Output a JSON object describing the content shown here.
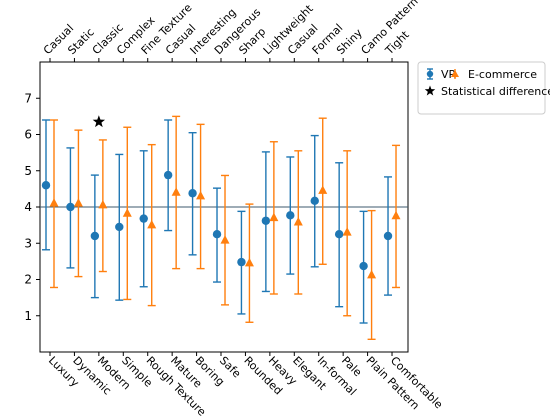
{
  "chart_data": {
    "type": "errorbar",
    "ylim": [
      0,
      8
    ],
    "y_ticks": [
      1,
      2,
      3,
      4,
      5,
      6,
      7
    ],
    "reference_line": 4,
    "categories_bottom": [
      "Luxury",
      "Dynamic",
      "Modern",
      "Simple",
      "Rough Texture",
      "Mature",
      "Boring",
      "Safe",
      "Rounded",
      "Heavy",
      "Elegant",
      "In-formal",
      "Pale",
      "Plain Pattern",
      "Comfortable"
    ],
    "categories_top": [
      "Casual",
      "Static",
      "Classic",
      "Complex",
      "Fine Texture",
      "Casual",
      "Interesting",
      "Dangerous",
      "Sharp",
      "Lightweight",
      "Casual",
      "Formal",
      "Shiny",
      "Camo Pattern",
      "Tight"
    ],
    "series": [
      {
        "name": "VR",
        "color": "#1f77b4",
        "marker": "circle",
        "mean": [
          4.6,
          4.0,
          3.2,
          3.45,
          3.68,
          4.88,
          4.38,
          3.25,
          2.48,
          3.62,
          3.77,
          4.17,
          3.25,
          2.37,
          3.2
        ],
        "low": [
          2.82,
          2.32,
          1.5,
          1.43,
          1.8,
          3.35,
          2.68,
          1.93,
          1.05,
          1.67,
          2.15,
          2.35,
          1.25,
          0.8,
          1.57
        ],
        "high": [
          6.4,
          5.63,
          4.88,
          5.45,
          5.55,
          6.4,
          6.05,
          4.52,
          3.88,
          5.52,
          5.38,
          5.97,
          5.22,
          3.88,
          4.83
        ]
      },
      {
        "name": "E-commerce",
        "color": "#ff7f0e",
        "marker": "triangle",
        "mean": [
          4.1,
          4.1,
          4.05,
          3.82,
          3.5,
          4.4,
          4.3,
          3.08,
          2.45,
          3.7,
          3.58,
          4.45,
          3.3,
          2.12,
          3.75
        ],
        "low": [
          1.78,
          2.08,
          2.22,
          1.45,
          1.28,
          2.3,
          2.3,
          1.3,
          0.82,
          1.6,
          1.6,
          2.42,
          1.0,
          0.35,
          1.78
        ],
        "high": [
          6.4,
          6.12,
          5.85,
          6.2,
          5.72,
          6.5,
          6.28,
          4.87,
          4.08,
          5.8,
          5.55,
          6.45,
          5.55,
          3.9,
          5.7
        ]
      }
    ],
    "significance": [
      {
        "index": 2,
        "y": 6.35
      }
    ],
    "legend": {
      "position": "upper-right-outside",
      "entries": [
        {
          "label": "VR",
          "color": "#1f77b4",
          "marker": "errorbar-circle"
        },
        {
          "label": "E-commerce",
          "color": "#ff7f0e",
          "marker": "errorbar-triangle"
        },
        {
          "label": "Statistical difference",
          "color": "#000000",
          "marker": "star"
        }
      ]
    }
  }
}
